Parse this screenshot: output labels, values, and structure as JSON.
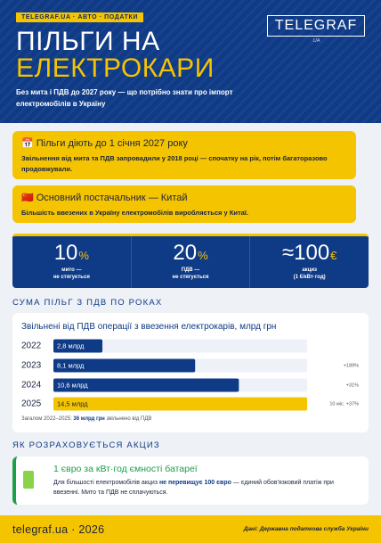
{
  "header": {
    "tag": "TELEGRAF.UA · АВТО · ПОДАТКИ",
    "logo": "TELEGRAF",
    "logo_sub": ".UA",
    "title_line1": "ПІЛЬГИ НА",
    "title_line2": "ЕЛЕКТРОКАРИ",
    "subtitle": "Без мита і ПДВ до 2027 року — що потрібно знати про імпорт електромобілів в Україну"
  },
  "cards": [
    {
      "title": "📅 Пільги діють до 1 січня 2027 року",
      "body": "Звільнення від мита та ПДВ запровадили у 2018 році — спочатку на рік, потім багаторазово продовжували."
    },
    {
      "title": "🇨🇳 Основний постачальник — Китай",
      "body": "Більшість ввезених в Україну електромобілів виробляється у Китаї."
    }
  ],
  "stats": [
    {
      "value": "10",
      "unit": "%",
      "label_line1": "мито —",
      "label_line2": "не стягується"
    },
    {
      "value": "20",
      "unit": "%",
      "label_line1": "ПДВ —",
      "label_line2": "не стягується"
    },
    {
      "value": "≈100",
      "unit": "€",
      "label_line1": "акциз",
      "label_line2": "(1 €/кВт·год)"
    }
  ],
  "section1": "СУМА ПІЛЬГ З ПДВ ПО РОКАХ",
  "chart_data": {
    "type": "bar",
    "orientation": "horizontal",
    "title": "Звільнені від ПДВ операції з ввезення електрокарів, млрд грн",
    "categories": [
      "2022",
      "2023",
      "2024",
      "2025"
    ],
    "values": [
      2.8,
      8.1,
      10.6,
      14.5
    ],
    "value_labels": [
      "2,8 млрд",
      "8,1 млрд",
      "10,6 млрд",
      "14,5 млрд"
    ],
    "colors": [
      "#0f3a86",
      "#0f3a86",
      "#0f3a86",
      "#f5c400"
    ],
    "changes": [
      null,
      "+189%",
      "+31%",
      "10 міс. +37%"
    ],
    "xlim": [
      0,
      14.5
    ],
    "footnote": {
      "before": "Загалом 2022–2025: ",
      "bold": "36 млрд грн",
      "after": " звільнено від ПДВ"
    }
  },
  "section2": "ЯК РОЗРАХОВУЄТЬСЯ АКЦИЗ",
  "excise": {
    "title": "1 євро за кВт·год ємності батареї",
    "body_before": "Для більшості електромобілів акциз ",
    "body_bold": "не перевищує 100 євро",
    "body_after": " — єдиний обов'язковий платіж при ввезенні. Мито та ПДВ не сплачуються."
  },
  "footer": {
    "site": "telegraf.ua · 2026",
    "source": "Дані: Державна податкова служба України"
  }
}
